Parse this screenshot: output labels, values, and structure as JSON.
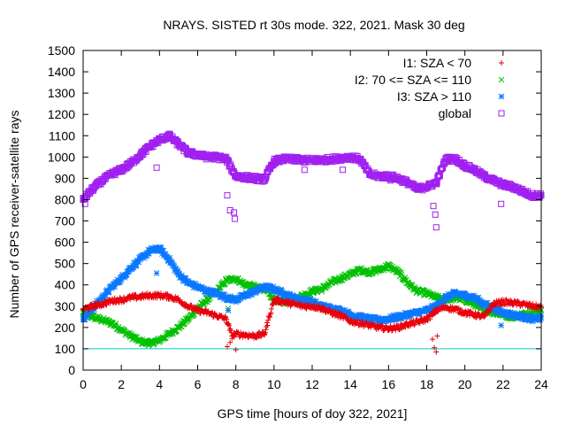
{
  "chart_data": {
    "type": "scatter",
    "title": "NRAYS. SISTED rt 30s mode. 322, 2021. Mask 30 deg",
    "xlabel": "GPS time [hours of doy 322, 2021]",
    "ylabel": "Number of GPS receiver-satellite rays",
    "xlim": [
      0,
      24
    ],
    "ylim": [
      0,
      1500
    ],
    "xticks": [
      0,
      2,
      4,
      6,
      8,
      10,
      12,
      14,
      16,
      18,
      20,
      22,
      24
    ],
    "yticks": [
      0,
      100,
      200,
      300,
      400,
      500,
      600,
      700,
      800,
      900,
      1000,
      1100,
      1200,
      1300,
      1400,
      1500
    ],
    "legend_position": "top-right",
    "reference_line": {
      "y": 100,
      "color": "#00c8c8"
    },
    "series": [
      {
        "name": "I1: SZA < 70",
        "marker": "+",
        "color": "#e8000b",
        "x": [
          0,
          0.5,
          1,
          1.5,
          2,
          2.5,
          3,
          3.5,
          4,
          4.5,
          5,
          5.5,
          6,
          6.5,
          7,
          7.5,
          7.8,
          8,
          8.5,
          9,
          9.5,
          10,
          10.5,
          11,
          11.5,
          12,
          12.5,
          13,
          13.5,
          14,
          14.5,
          15,
          15.5,
          16,
          16.5,
          17,
          17.5,
          18,
          18.3,
          18.5,
          19,
          19.5,
          20,
          20.5,
          21,
          21.5,
          22,
          22.5,
          23,
          23.5,
          24
        ],
        "y": [
          285,
          300,
          310,
          325,
          330,
          340,
          345,
          350,
          350,
          345,
          330,
          300,
          280,
          270,
          255,
          240,
          160,
          170,
          165,
          160,
          170,
          330,
          320,
          310,
          300,
          300,
          290,
          270,
          255,
          230,
          220,
          210,
          200,
          195,
          200,
          215,
          225,
          240,
          260,
          280,
          295,
          285,
          270,
          260,
          250,
          310,
          320,
          315,
          310,
          300,
          295
        ]
      },
      {
        "name": "I2: 70 <= SZA <= 110",
        "marker": "x",
        "color": "#00c000",
        "x": [
          0,
          0.5,
          1,
          1.5,
          2,
          2.5,
          3,
          3.5,
          4,
          4.5,
          5,
          5.5,
          6,
          6.5,
          7,
          7.5,
          8,
          8.5,
          9,
          9.5,
          10,
          10.5,
          11,
          11.5,
          12,
          12.5,
          13,
          13.5,
          14,
          14.5,
          15,
          15.5,
          16,
          16.5,
          17,
          17.5,
          18,
          18.5,
          19,
          19.5,
          20,
          20.5,
          21,
          21.5,
          22,
          22.5,
          23,
          23.5,
          24
        ],
        "y": [
          270,
          250,
          235,
          220,
          190,
          160,
          135,
          125,
          140,
          170,
          200,
          240,
          290,
          330,
          370,
          420,
          430,
          400,
          390,
          380,
          330,
          320,
          330,
          350,
          370,
          380,
          410,
          430,
          450,
          470,
          460,
          470,
          490,
          460,
          410,
          370,
          360,
          340,
          330,
          340,
          330,
          310,
          280,
          270,
          260,
          250,
          260,
          270,
          280
        ]
      },
      {
        "name": "I3: SZA > 110",
        "marker": "*",
        "color": "#0a78ff",
        "x": [
          0,
          0.5,
          1,
          1.5,
          2,
          2.5,
          3,
          3.5,
          4,
          4.5,
          5,
          5.5,
          6,
          6.5,
          7,
          7.5,
          8,
          8.5,
          9,
          9.5,
          10,
          10.5,
          11,
          11.5,
          12,
          12.5,
          13,
          13.5,
          14,
          14.5,
          15,
          15.5,
          16,
          16.5,
          17,
          17.5,
          18,
          18.5,
          19,
          19.5,
          20,
          20.5,
          21,
          21.5,
          22,
          22.5,
          23,
          23.5,
          24
        ],
        "y": [
          240,
          290,
          340,
          390,
          430,
          480,
          520,
          560,
          570,
          520,
          450,
          410,
          390,
          370,
          360,
          340,
          330,
          350,
          370,
          390,
          380,
          360,
          340,
          330,
          320,
          300,
          290,
          280,
          260,
          250,
          240,
          235,
          240,
          250,
          260,
          270,
          280,
          300,
          340,
          360,
          350,
          340,
          310,
          290,
          270,
          260,
          250,
          240,
          245
        ]
      },
      {
        "name": "global",
        "marker": "square",
        "color": "#a020f0",
        "x": [
          0,
          0.5,
          1,
          1.5,
          2,
          2.5,
          3,
          3.5,
          4,
          4.5,
          5,
          5.5,
          6,
          6.5,
          7,
          7.5,
          8,
          8.5,
          9,
          9.5,
          10,
          10.5,
          11,
          11.5,
          12,
          12.5,
          13,
          13.5,
          14,
          14.5,
          15,
          15.5,
          16,
          16.5,
          17,
          17.5,
          18,
          18.5,
          19,
          19.5,
          20,
          20.5,
          21,
          21.5,
          22,
          22.5,
          23,
          23.5,
          24
        ],
        "y": [
          800,
          850,
          890,
          920,
          940,
          970,
          1010,
          1050,
          1080,
          1100,
          1060,
          1020,
          1010,
          1000,
          1000,
          990,
          910,
          905,
          900,
          895,
          980,
          990,
          990,
          985,
          985,
          985,
          990,
          995,
          1000,
          990,
          920,
          910,
          910,
          900,
          880,
          850,
          860,
          880,
          990,
          990,
          960,
          940,
          910,
          890,
          870,
          860,
          840,
          820,
          820
        ]
      }
    ],
    "outliers": {
      "global": {
        "x": [
          0.1,
          3.85,
          7.55,
          7.7,
          7.9,
          7.95,
          11.6,
          13.6,
          16.1,
          18.35,
          18.45,
          18.5,
          21.9
        ],
        "y": [
          780,
          950,
          820,
          750,
          740,
          710,
          940,
          940,
          890,
          770,
          730,
          670,
          780
        ]
      },
      "I1: SZA < 70": {
        "x": [
          7.55,
          7.7,
          8.0,
          18.3,
          18.4,
          18.5,
          18.55
        ],
        "y": [
          110,
          130,
          95,
          145,
          105,
          85,
          160
        ]
      },
      "I2: 70 <= SZA <= 110": {
        "x": [
          7.6,
          18.4
        ],
        "y": [
          290,
          350
        ]
      },
      "I3: SZA > 110": {
        "x": [
          3.85,
          7.6,
          21.9
        ],
        "y": [
          455,
          280,
          210
        ]
      }
    }
  }
}
